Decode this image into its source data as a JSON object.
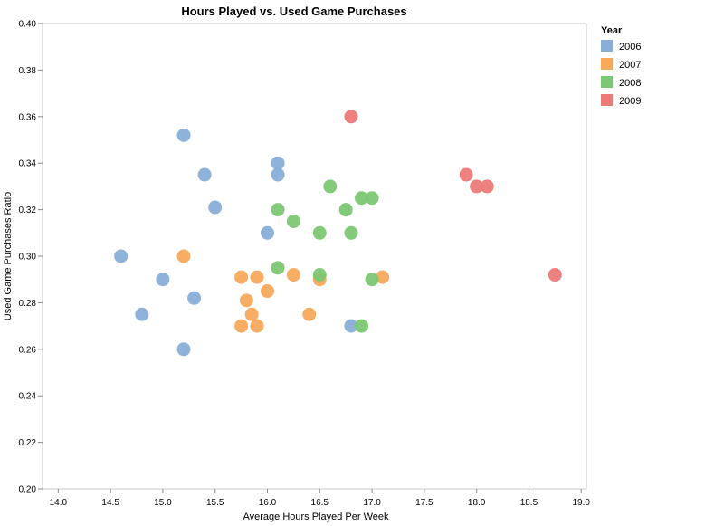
{
  "chart_data": {
    "type": "scatter",
    "title": "Hours Played vs. Used Game Purchases",
    "xlabel": "Average Hours Played Per Week",
    "ylabel": "Used Game Purchases Ratio",
    "xlim": [
      13.85,
      19.05
    ],
    "ylim": [
      0.2,
      0.4
    ],
    "xticks": [
      "14.0",
      "14.5",
      "15.0",
      "15.5",
      "16.0",
      "16.5",
      "17.0",
      "17.5",
      "18.0",
      "18.5",
      "19.0"
    ],
    "yticks": [
      "0.20",
      "0.22",
      "0.24",
      "0.26",
      "0.28",
      "0.30",
      "0.32",
      "0.34",
      "0.36",
      "0.38",
      "0.40"
    ],
    "grid": false,
    "legend_title": "Year",
    "legend_position": "right",
    "series": [
      {
        "name": "2006",
        "color": "#89aed8",
        "points": [
          [
            14.6,
            0.3
          ],
          [
            14.8,
            0.275
          ],
          [
            15.0,
            0.29
          ],
          [
            15.2,
            0.352
          ],
          [
            15.2,
            0.26
          ],
          [
            15.3,
            0.282
          ],
          [
            15.4,
            0.335
          ],
          [
            15.5,
            0.321
          ],
          [
            16.0,
            0.31
          ],
          [
            16.1,
            0.34
          ],
          [
            16.1,
            0.335
          ],
          [
            16.8,
            0.27
          ]
        ]
      },
      {
        "name": "2007",
        "color": "#f7a95c",
        "points": [
          [
            15.2,
            0.3
          ],
          [
            15.75,
            0.291
          ],
          [
            15.75,
            0.27
          ],
          [
            15.8,
            0.281
          ],
          [
            15.85,
            0.275
          ],
          [
            15.9,
            0.291
          ],
          [
            15.9,
            0.27
          ],
          [
            16.0,
            0.285
          ],
          [
            16.25,
            0.292
          ],
          [
            16.4,
            0.275
          ],
          [
            16.5,
            0.29
          ],
          [
            17.1,
            0.291
          ]
        ]
      },
      {
        "name": "2008",
        "color": "#7cc773",
        "points": [
          [
            16.1,
            0.32
          ],
          [
            16.1,
            0.295
          ],
          [
            16.25,
            0.315
          ],
          [
            16.5,
            0.31
          ],
          [
            16.5,
            0.292
          ],
          [
            16.6,
            0.33
          ],
          [
            16.75,
            0.32
          ],
          [
            16.8,
            0.31
          ],
          [
            16.9,
            0.325
          ],
          [
            16.9,
            0.27
          ],
          [
            17.0,
            0.325
          ],
          [
            17.0,
            0.29
          ]
        ]
      },
      {
        "name": "2009",
        "color": "#ec7a78",
        "points": [
          [
            16.8,
            0.36
          ],
          [
            17.9,
            0.335
          ],
          [
            18.0,
            0.33
          ],
          [
            18.1,
            0.33
          ],
          [
            18.75,
            0.292
          ]
        ]
      }
    ]
  }
}
